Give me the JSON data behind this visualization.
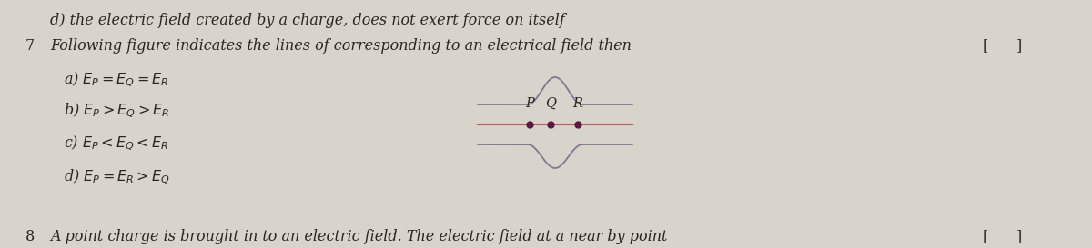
{
  "bg_color": "#d8d4cc",
  "text_color": "#2a2520",
  "line1": "d) the electric field created by a charge, does not exert force on itself",
  "question_num": "7",
  "question_text": "Following figure indicates the lines of corresponding to an electrical field then",
  "bracket_q": "[      ]",
  "options": [
    "a) $E_P = E_Q = E_R$",
    "b) $E_P > E_Q > E_R$",
    "c) $E_P < E_Q < E_R$",
    "d) $E_P = E_R > E_Q$"
  ],
  "bottom_num": "8",
  "bottom_text": "A point charge is brought in to an electric field. The electric field at a near by point",
  "bracket_bottom": "[      ]",
  "field_line_color": "#807890",
  "middle_line_color": "#b86060",
  "dot_color": "#5a1a40",
  "point_labels": [
    "P",
    "Q",
    "R"
  ]
}
